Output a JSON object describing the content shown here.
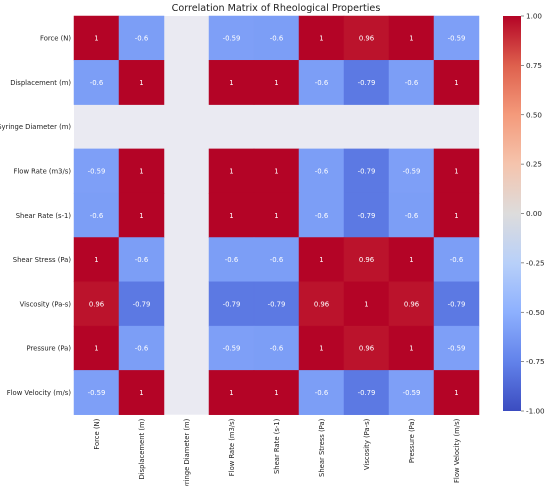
{
  "chart_data": {
    "type": "heatmap",
    "title": "Correlation Matrix of Rheological Properties",
    "rows": [
      "Force (N)",
      "Displacement (m)",
      "Syringe Diameter (m)",
      "Flow Rate (m3/s)",
      "Shear Rate (s-1)",
      "Shear Stress (Pa)",
      "Viscosity (Pa-s)",
      "Pressure (Pa)",
      "Flow Velocity (m/s)"
    ],
    "columns": [
      "Force (N)",
      "Displacement (m)",
      "Syringe Diameter (m)",
      "Flow Rate (m3/s)",
      "Shear Rate (s-1)",
      "Shear Stress (Pa)",
      "Viscosity (Pa-s)",
      "Pressure (Pa)",
      "Flow Velocity (m/s)"
    ],
    "values": [
      [
        1,
        -0.6,
        null,
        -0.59,
        -0.6,
        1,
        0.96,
        1,
        -0.59
      ],
      [
        -0.6,
        1,
        null,
        1,
        1,
        -0.6,
        -0.79,
        -0.6,
        1
      ],
      [
        null,
        null,
        null,
        null,
        null,
        null,
        null,
        null,
        null
      ],
      [
        -0.59,
        1,
        null,
        1,
        1,
        -0.6,
        -0.79,
        -0.59,
        1
      ],
      [
        -0.6,
        1,
        null,
        1,
        1,
        -0.6,
        -0.79,
        -0.6,
        1
      ],
      [
        1,
        -0.6,
        null,
        -0.6,
        -0.6,
        1,
        0.96,
        1,
        -0.6
      ],
      [
        0.96,
        -0.79,
        null,
        -0.79,
        -0.79,
        0.96,
        1,
        0.96,
        -0.79
      ],
      [
        1,
        -0.6,
        null,
        -0.59,
        -0.6,
        1,
        0.96,
        1,
        -0.59
      ],
      [
        -0.59,
        1,
        null,
        1,
        1,
        -0.6,
        -0.79,
        -0.59,
        1
      ]
    ],
    "colormap": "coolwarm",
    "vmin": -1,
    "vmax": 1,
    "colorbar_ticks": [
      "1.00",
      "0.75",
      "0.50",
      "0.25",
      "0.00",
      "-0.25",
      "-0.50",
      "-0.75",
      "-1.00"
    ],
    "missing_color": "#eaeaf2"
  }
}
